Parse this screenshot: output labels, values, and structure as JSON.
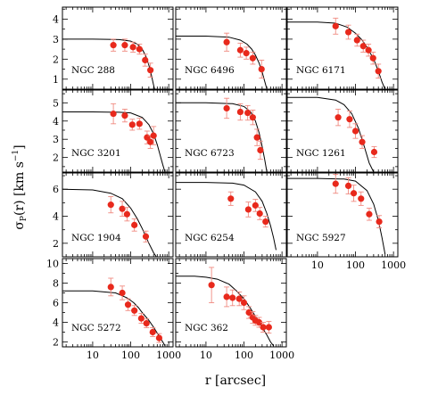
{
  "figure": {
    "ylabel_html": "σ<tspan font-size='9' dy='3'>P</tspan><tspan dy='-3'>(r)  [km s</tspan><tspan font-size='9' dy='-6'>−1</tspan><tspan dy='6'>]</tspan>",
    "ylabel": "σP(r)  [km s−1]",
    "xlabel": "r [arcsec]"
  },
  "style": {
    "point_color": "#e8291c",
    "errorbar_color": "#f08a80",
    "line_color": "#000000"
  },
  "chart_data": [
    {
      "type": "scatter",
      "title": "NGC 288",
      "x_scale": "log",
      "xlim": [
        1.6,
        1300
      ],
      "ylim": [
        0.5,
        4.6
      ],
      "yticks": [
        1,
        2,
        3,
        4
      ],
      "xticks": [
        10,
        100,
        1000
      ],
      "xtick_labels": [
        "10",
        "100",
        "1000"
      ],
      "show_xtick_labels": false,
      "x": [
        35,
        70,
        115,
        170,
        240,
        330
      ],
      "y": [
        2.7,
        2.7,
        2.6,
        2.5,
        1.95,
        1.45
      ],
      "yerr": [
        0.3,
        0.3,
        0.25,
        0.25,
        0.3,
        0.35
      ],
      "model": {
        "x": [
          1.6,
          10,
          50,
          100,
          150,
          200,
          250,
          300,
          350,
          400,
          450
        ],
        "y": [
          3.0,
          3.0,
          2.98,
          2.9,
          2.75,
          2.5,
          2.15,
          1.7,
          1.2,
          0.7,
          0.3
        ]
      }
    },
    {
      "type": "scatter",
      "title": "NGC 6496",
      "x_scale": "log",
      "xlim": [
        1.6,
        1300
      ],
      "ylim": [
        0.5,
        4.6
      ],
      "yticks": [],
      "xticks": [
        10,
        100,
        1000
      ],
      "xtick_labels": [
        "10",
        "100",
        "1000"
      ],
      "show_xtick_labels": false,
      "x": [
        35,
        80,
        115,
        170,
        290
      ],
      "y": [
        2.85,
        2.45,
        2.3,
        2.05,
        1.5
      ],
      "yerr": [
        0.45,
        0.35,
        0.3,
        0.3,
        0.45
      ],
      "model": {
        "x": [
          1.6,
          10,
          40,
          80,
          120,
          160,
          200,
          250,
          300,
          350,
          400
        ],
        "y": [
          3.15,
          3.15,
          3.1,
          2.95,
          2.75,
          2.5,
          2.2,
          1.8,
          1.35,
          0.9,
          0.5
        ]
      }
    },
    {
      "type": "scatter",
      "title": "NGC 6171",
      "x_scale": "log",
      "xlim": [
        1.6,
        1300
      ],
      "ylim": [
        0.5,
        4.6
      ],
      "yticks": [],
      "xticks": [
        10,
        100,
        1000
      ],
      "xtick_labels": [
        "10",
        "100",
        "1000"
      ],
      "show_xtick_labels": false,
      "x": [
        30,
        65,
        110,
        160,
        220,
        290,
        400
      ],
      "y": [
        3.65,
        3.35,
        2.95,
        2.65,
        2.45,
        2.05,
        1.4
      ],
      "yerr": [
        0.4,
        0.35,
        0.3,
        0.3,
        0.3,
        0.3,
        0.35
      ],
      "model": {
        "x": [
          1.6,
          10,
          30,
          60,
          100,
          150,
          200,
          300,
          400,
          500,
          600
        ],
        "y": [
          3.85,
          3.85,
          3.8,
          3.6,
          3.3,
          2.95,
          2.6,
          2.0,
          1.4,
          0.85,
          0.5
        ]
      }
    },
    {
      "type": "scatter",
      "title": "NGC 3201",
      "x_scale": "log",
      "xlim": [
        1.6,
        1300
      ],
      "ylim": [
        1.2,
        5.7
      ],
      "yticks": [
        2,
        3,
        4,
        5
      ],
      "xticks": [
        10,
        100,
        1000
      ],
      "xtick_labels": [
        "10",
        "100",
        "1000"
      ],
      "show_xtick_labels": false,
      "x": [
        35,
        70,
        110,
        170,
        270,
        330,
        400
      ],
      "y": [
        4.4,
        4.3,
        3.8,
        3.85,
        3.1,
        2.85,
        3.2
      ],
      "yerr": [
        0.55,
        0.35,
        0.3,
        0.3,
        0.35,
        0.35,
        0.5
      ],
      "model": {
        "x": [
          1.6,
          10,
          50,
          100,
          200,
          300,
          400,
          500,
          600,
          700,
          800
        ],
        "y": [
          4.5,
          4.5,
          4.48,
          4.45,
          4.2,
          3.8,
          3.3,
          2.7,
          2.1,
          1.6,
          1.2
        ]
      }
    },
    {
      "type": "scatter",
      "title": "NGC 6723",
      "x_scale": "log",
      "xlim": [
        1.6,
        1300
      ],
      "ylim": [
        1.2,
        5.7
      ],
      "yticks": [],
      "xticks": [
        10,
        100,
        1000
      ],
      "xtick_labels": [
        "10",
        "100",
        "1000"
      ],
      "show_xtick_labels": false,
      "x": [
        35,
        80,
        125,
        170,
        220,
        270
      ],
      "y": [
        4.7,
        4.5,
        4.45,
        4.2,
        3.1,
        2.4
      ],
      "yerr": [
        0.55,
        0.45,
        0.4,
        0.4,
        0.45,
        0.5
      ],
      "model": {
        "x": [
          1.6,
          10,
          50,
          100,
          150,
          200,
          250,
          300,
          350,
          400
        ],
        "y": [
          5.0,
          5.0,
          4.95,
          4.8,
          4.5,
          4.0,
          3.35,
          2.6,
          1.9,
          1.2
        ]
      }
    },
    {
      "type": "scatter",
      "title": "NGC 1261",
      "x_scale": "log",
      "xlim": [
        1.6,
        1300
      ],
      "ylim": [
        1.2,
        5.7
      ],
      "yticks": [],
      "xticks": [
        10,
        100,
        1000
      ],
      "xtick_labels": [
        "10",
        "100",
        "1000"
      ],
      "show_xtick_labels": false,
      "x": [
        35,
        70,
        100,
        150,
        310
      ],
      "y": [
        4.2,
        4.1,
        3.45,
        2.85,
        2.3
      ],
      "yerr": [
        0.45,
        0.45,
        0.4,
        0.35,
        0.3
      ],
      "model": {
        "x": [
          1.6,
          10,
          30,
          50,
          80,
          120,
          170,
          230,
          300
        ],
        "y": [
          5.3,
          5.3,
          5.15,
          4.9,
          4.4,
          3.6,
          2.6,
          1.7,
          1.2
        ]
      }
    },
    {
      "type": "scatter",
      "title": "NGC 1904",
      "x_scale": "log",
      "xlim": [
        1.6,
        1300
      ],
      "ylim": [
        1.0,
        7.2
      ],
      "yticks": [
        2,
        4,
        6
      ],
      "xticks": [
        10,
        100,
        1000
      ],
      "xtick_labels": [
        "10",
        "100",
        "1000"
      ],
      "show_xtick_labels": false,
      "x": [
        30,
        60,
        80,
        125,
        250
      ],
      "y": [
        4.85,
        4.55,
        4.15,
        3.35,
        2.5
      ],
      "yerr": [
        0.6,
        0.55,
        0.5,
        0.45,
        0.4
      ],
      "model": {
        "x": [
          1.6,
          10,
          30,
          60,
          100,
          150,
          200,
          300,
          400,
          500
        ],
        "y": [
          6.0,
          5.95,
          5.7,
          5.3,
          4.6,
          3.8,
          3.1,
          2.0,
          1.3,
          0.9
        ]
      }
    },
    {
      "type": "scatter",
      "title": "NGC 6254",
      "x_scale": "log",
      "xlim": [
        1.6,
        1300
      ],
      "ylim": [
        1.0,
        7.2
      ],
      "yticks": [],
      "xticks": [
        10,
        100,
        1000
      ],
      "xtick_labels": [
        "10",
        "100",
        "1000"
      ],
      "show_xtick_labels": false,
      "x": [
        45,
        130,
        200,
        260,
        370
      ],
      "y": [
        5.3,
        4.5,
        4.8,
        4.2,
        3.6
      ],
      "yerr": [
        0.5,
        0.55,
        0.45,
        0.45,
        0.4
      ],
      "model": {
        "x": [
          1.6,
          10,
          50,
          100,
          200,
          300,
          400,
          500,
          600,
          700
        ],
        "y": [
          6.5,
          6.5,
          6.45,
          6.3,
          5.8,
          5.1,
          4.2,
          3.3,
          2.4,
          1.5
        ]
      }
    },
    {
      "type": "scatter",
      "title": "NGC 5927",
      "x_scale": "log",
      "xlim": [
        1.6,
        1300
      ],
      "ylim": [
        1.0,
        7.2
      ],
      "yticks": [],
      "xticks": [
        10,
        100,
        1000
      ],
      "xtick_labels": [
        "10",
        "100",
        "1000"
      ],
      "show_xtick_labels": true,
      "x": [
        30,
        65,
        90,
        140,
        230,
        420
      ],
      "y": [
        6.4,
        6.25,
        5.7,
        5.3,
        4.15,
        3.6
      ],
      "yerr": [
        0.7,
        0.6,
        0.6,
        0.5,
        0.45,
        0.45
      ],
      "model": {
        "x": [
          1.6,
          10,
          50,
          100,
          200,
          300,
          400,
          500,
          600
        ],
        "y": [
          6.8,
          6.8,
          6.75,
          6.6,
          5.9,
          4.9,
          3.7,
          2.4,
          1.2
        ]
      }
    },
    {
      "type": "scatter",
      "title": "NGC 5272",
      "x_scale": "log",
      "xlim": [
        1.6,
        1300
      ],
      "ylim": [
        1.5,
        10.5
      ],
      "yticks": [
        2,
        4,
        6,
        8,
        10
      ],
      "xticks": [
        10,
        100,
        1000
      ],
      "xtick_labels": [
        "10",
        "100",
        "1000"
      ],
      "show_xtick_labels": true,
      "x": [
        30,
        60,
        85,
        125,
        190,
        260,
        380,
        560
      ],
      "y": [
        7.6,
        7.0,
        5.8,
        5.2,
        4.4,
        3.9,
        3.0,
        2.4
      ],
      "yerr": [
        0.9,
        0.7,
        0.6,
        0.5,
        0.5,
        0.45,
        0.45,
        0.45
      ],
      "model": {
        "x": [
          1.6,
          10,
          40,
          80,
          120,
          160,
          200,
          300,
          400,
          500,
          600,
          700,
          800
        ],
        "y": [
          7.2,
          7.2,
          7.0,
          6.5,
          6.0,
          5.5,
          5.0,
          4.2,
          3.5,
          2.9,
          2.4,
          2.0,
          1.6
        ]
      }
    },
    {
      "type": "scatter",
      "title": "NGC 362",
      "x_scale": "log",
      "xlim": [
        1.6,
        1300
      ],
      "ylim": [
        1.5,
        10.5
      ],
      "yticks": [],
      "xticks": [
        10,
        100,
        1000
      ],
      "xtick_labels": [
        "10",
        "100",
        "1000"
      ],
      "show_xtick_labels": true,
      "x": [
        14,
        35,
        50,
        75,
        100,
        135,
        170,
        200,
        250,
        320,
        450
      ],
      "y": [
        7.8,
        6.6,
        6.5,
        6.4,
        6.0,
        5.0,
        4.5,
        4.2,
        4.0,
        3.5,
        3.5
      ],
      "yerr": [
        1.8,
        1.0,
        0.8,
        0.7,
        0.7,
        0.6,
        0.6,
        0.5,
        0.5,
        0.5,
        0.6
      ],
      "model": {
        "x": [
          1.6,
          5,
          10,
          20,
          40,
          60,
          100,
          150,
          200,
          300,
          400,
          500,
          600
        ],
        "y": [
          8.7,
          8.7,
          8.6,
          8.4,
          7.9,
          7.3,
          6.4,
          5.4,
          4.6,
          3.5,
          2.7,
          2.0,
          1.6
        ]
      }
    }
  ]
}
